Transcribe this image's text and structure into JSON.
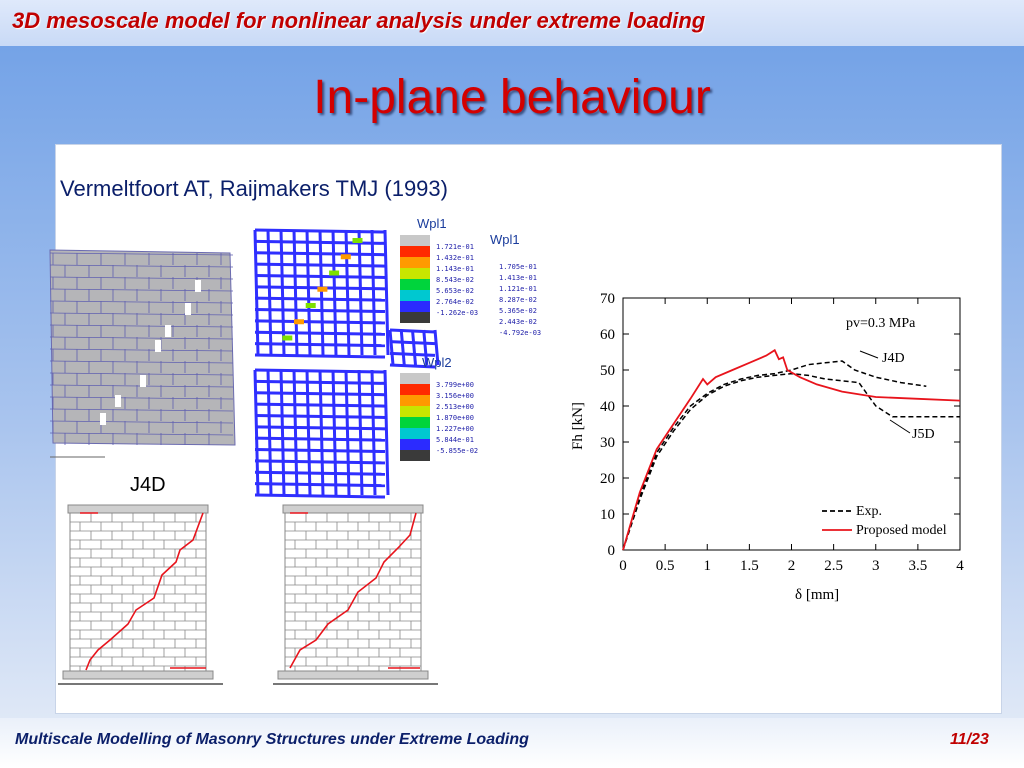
{
  "header": {
    "title": "3D mesoscale model for nonlinear analysis under extreme loading"
  },
  "slide": {
    "title": "In-plane behaviour",
    "subtitle": "Vermeltfoort AT, Raijmakers TMJ (1993)",
    "wall_label": "J4D"
  },
  "contours": {
    "top": {
      "label": "Wpl1",
      "values": [
        "1.721e-01",
        "1.432e-01",
        "1.143e-01",
        "8.543e-02",
        "5.653e-02",
        "2.764e-02",
        "-1.262e-03"
      ]
    },
    "right": {
      "label": "Wpl1",
      "values": [
        "1.705e-01",
        "1.413e-01",
        "1.121e-01",
        "8.287e-02",
        "5.365e-02",
        "2.443e-02",
        "-4.792e-03"
      ]
    },
    "bottom": {
      "label": "Wpl2",
      "values": [
        "3.799e+00",
        "3.156e+00",
        "2.513e+00",
        "1.870e+00",
        "1.227e+00",
        "5.844e-01",
        "-5.855e-02"
      ]
    },
    "colors": [
      "#c8c8c8",
      "#ff2a00",
      "#ff9a00",
      "#c8e600",
      "#00d43c",
      "#00c8d0",
      "#2b2bff",
      "#3a3a3a"
    ]
  },
  "chart_data": {
    "type": "line",
    "annotation": "pv=0.3 MPa",
    "xlabel": "δ [mm]",
    "ylabel": "Fh [kN]",
    "xlim": [
      0,
      4
    ],
    "ylim": [
      0,
      70
    ],
    "xticks": [
      "0",
      "0.5",
      "1",
      "1.5",
      "2",
      "2.5",
      "3",
      "3.5",
      "4"
    ],
    "yticks": [
      "0",
      "10",
      "20",
      "30",
      "40",
      "50",
      "60",
      "70"
    ],
    "legend_position": "bottom-right",
    "curve_labels": [
      "J4D",
      "J5D"
    ],
    "series": [
      {
        "name": "Exp.",
        "style": "dashed",
        "color": "#000000",
        "points": [
          [
            0,
            0
          ],
          [
            0.2,
            15
          ],
          [
            0.4,
            27
          ],
          [
            0.6,
            34
          ],
          [
            0.8,
            40
          ],
          [
            1.0,
            43.5
          ],
          [
            1.2,
            46
          ],
          [
            1.4,
            47.5
          ],
          [
            1.6,
            48.5
          ],
          [
            1.8,
            49
          ],
          [
            2.0,
            50
          ],
          [
            2.2,
            51.5
          ],
          [
            2.4,
            52
          ],
          [
            2.6,
            52.5
          ],
          [
            2.75,
            50
          ],
          [
            3.0,
            48
          ],
          [
            3.3,
            46.5
          ],
          [
            3.6,
            45.5
          ]
        ]
      },
      {
        "name": "Exp.",
        "style": "dashed",
        "color": "#000000",
        "points": [
          [
            0,
            0
          ],
          [
            0.2,
            14
          ],
          [
            0.4,
            26
          ],
          [
            0.6,
            33
          ],
          [
            0.8,
            39
          ],
          [
            1.0,
            43
          ],
          [
            1.2,
            45.5
          ],
          [
            1.4,
            47
          ],
          [
            1.6,
            48
          ],
          [
            1.8,
            48.5
          ],
          [
            2.0,
            49
          ],
          [
            2.2,
            48.5
          ],
          [
            2.4,
            47.5
          ],
          [
            2.6,
            47
          ],
          [
            2.8,
            46.5
          ],
          [
            3.0,
            40
          ],
          [
            3.2,
            37
          ],
          [
            3.5,
            37
          ],
          [
            4.0,
            37
          ]
        ]
      },
      {
        "name": "Proposed model",
        "style": "solid",
        "color": "#e8141c",
        "points": [
          [
            0,
            0
          ],
          [
            0.2,
            16
          ],
          [
            0.4,
            28
          ],
          [
            0.6,
            35
          ],
          [
            0.8,
            42
          ],
          [
            0.95,
            47.5
          ],
          [
            1.0,
            46
          ],
          [
            1.1,
            48
          ],
          [
            1.3,
            50
          ],
          [
            1.5,
            52
          ],
          [
            1.7,
            54
          ],
          [
            1.8,
            55.5
          ],
          [
            1.85,
            53
          ],
          [
            1.9,
            53.5
          ],
          [
            1.95,
            50
          ],
          [
            2.1,
            48
          ],
          [
            2.3,
            46
          ],
          [
            2.6,
            44
          ],
          [
            3.0,
            42.5
          ],
          [
            3.5,
            42
          ],
          [
            4.0,
            41.5
          ]
        ]
      }
    ]
  },
  "footer": {
    "title": "Multiscale Modelling of Masonry Structures under Extreme Loading",
    "page": "11/23"
  }
}
